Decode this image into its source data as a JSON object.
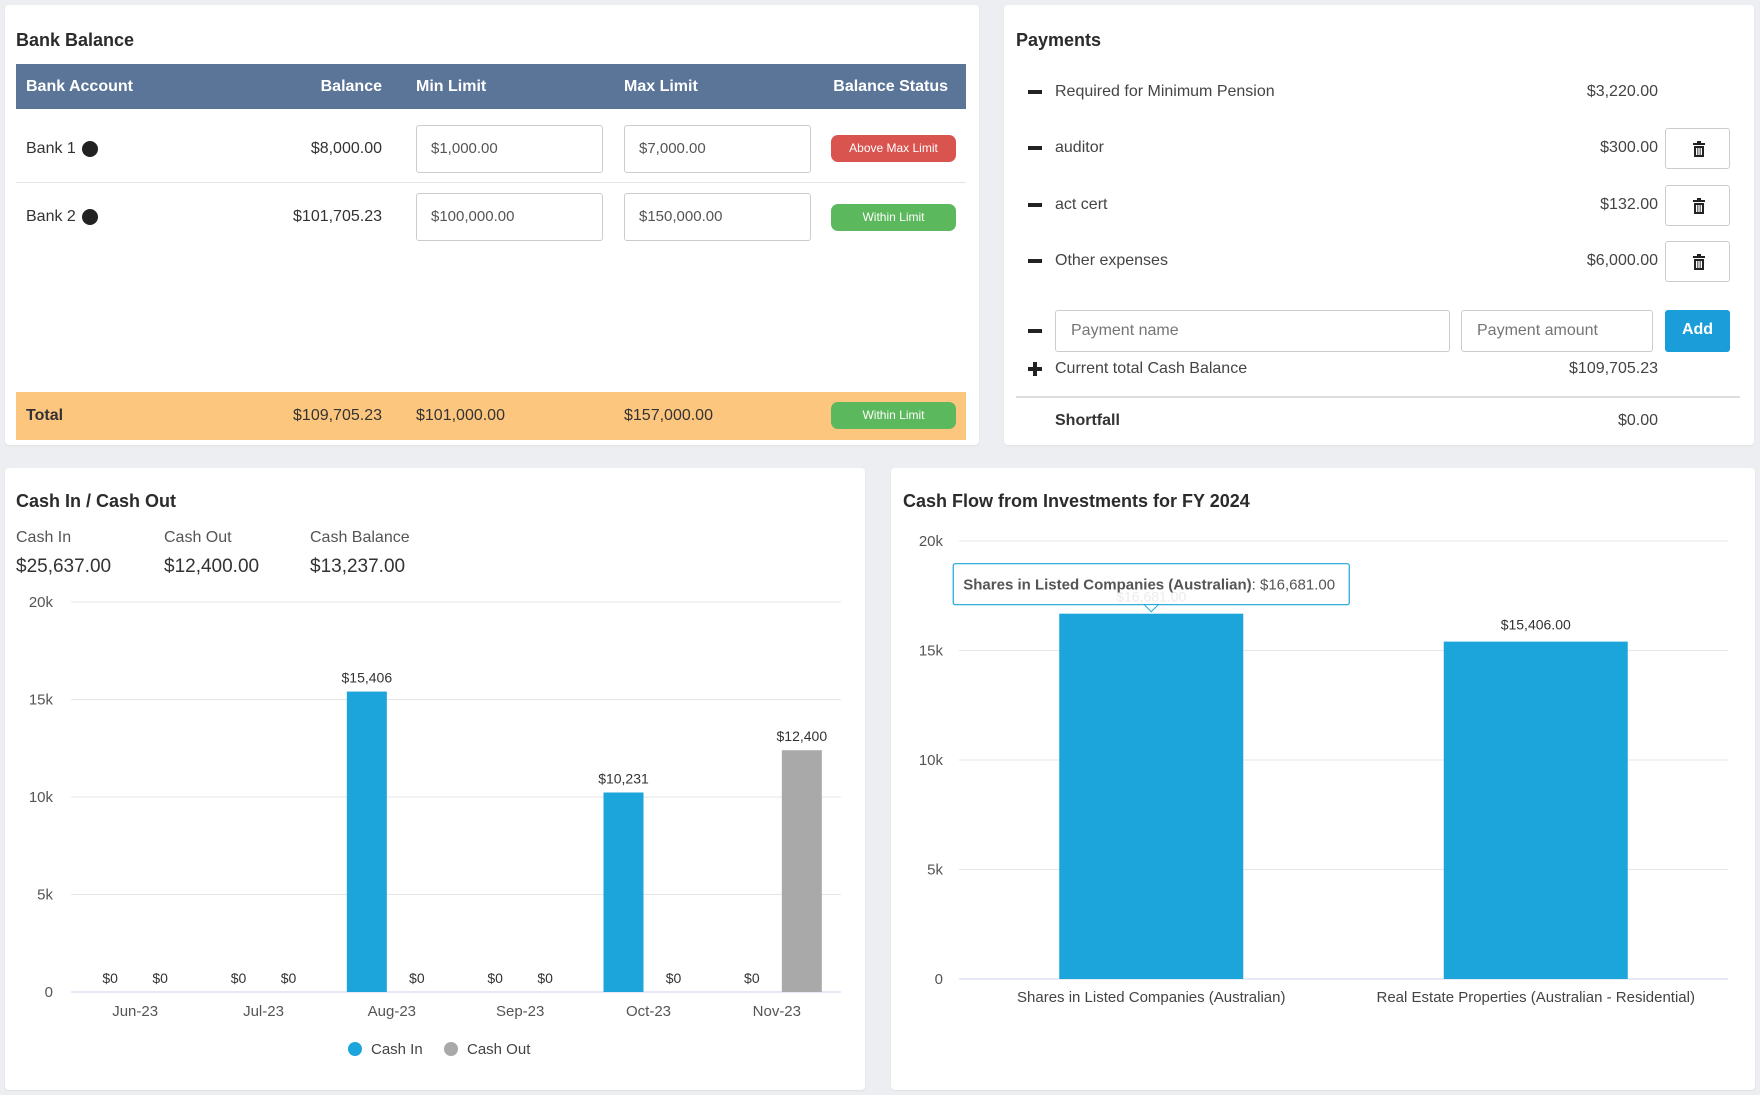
{
  "bank_balance": {
    "title": "Bank Balance",
    "headers": {
      "account": "Bank Account",
      "balance": "Balance",
      "min_limit": "Min Limit",
      "max_limit": "Max Limit",
      "status": "Balance Status"
    },
    "rows": [
      {
        "account": "Bank 1",
        "balance": "$8,000.00",
        "min_limit": "$1,000.00",
        "max_limit": "$7,000.00",
        "status": "Above Max Limit"
      },
      {
        "account": "Bank 2",
        "balance": "$101,705.23",
        "min_limit": "$100,000.00",
        "max_limit": "$150,000.00",
        "status": "Within Limit"
      }
    ],
    "total": {
      "label": "Total",
      "balance": "$109,705.23",
      "min_limit": "$101,000.00",
      "max_limit": "$157,000.00",
      "status": "Within Limit"
    },
    "colors": {
      "header": "#5b7599",
      "total_row": "#fdc67e",
      "above": "#d9534f",
      "within": "#5cb85c"
    },
    "help_icon": "?"
  },
  "payments": {
    "title": "Payments",
    "items": [
      {
        "label": "Required for Minimum Pension",
        "amount": "$3,220.00"
      },
      {
        "label": "auditor",
        "amount": "$300.00"
      },
      {
        "label": "act cert",
        "amount": "$132.00"
      },
      {
        "label": "Other expenses",
        "amount": "$6,000.00"
      }
    ],
    "name_placeholder": "Payment name",
    "amount_placeholder": "Payment amount",
    "add_label": "Add",
    "cash_balance_label": "Current total Cash Balance",
    "cash_balance_value": "$109,705.23",
    "shortfall_label": "Shortfall",
    "shortfall_value": "$0.00"
  },
  "cash_io": {
    "title": "Cash In / Cash Out",
    "stats": [
      {
        "label": "Cash In",
        "value": "$25,637.00"
      },
      {
        "label": "Cash Out",
        "value": "$12,400.00"
      },
      {
        "label": "Cash Balance",
        "value": "$13,237.00"
      }
    ]
  },
  "investments": {
    "title": "Cash Flow from Investments for FY 2024",
    "tooltip_label": "Shares in Listed Companies (Australian)",
    "tooltip_value": ": $16,681.00"
  },
  "chart_data": [
    {
      "type": "bar",
      "categories": [
        "Jun-23",
        "Jul-23",
        "Aug-23",
        "Sep-23",
        "Oct-23",
        "Nov-23"
      ],
      "series": [
        {
          "name": "Cash In",
          "values": [
            0,
            0,
            15406,
            0,
            10231,
            0
          ],
          "labels": [
            "$0",
            "$0",
            "$15,406",
            "$0",
            "$10,231",
            "$0"
          ],
          "color": "#1ba5da"
        },
        {
          "name": "Cash Out",
          "values": [
            0,
            0,
            0,
            0,
            0,
            12400
          ],
          "labels": [
            "$0",
            "$0",
            "$0",
            "$0",
            "$0",
            "$12,400"
          ],
          "color": "#a9a9a9"
        }
      ],
      "yticks": [
        "0",
        "5k",
        "10k",
        "15k",
        "20k"
      ],
      "ylim": [
        0,
        20000
      ],
      "grid": true,
      "legend": "bottom"
    },
    {
      "type": "bar",
      "categories": [
        "Shares in Listed Companies (Australian)",
        "Real Estate Properties (Australian - Residential)"
      ],
      "values": [
        16681,
        15406
      ],
      "labels": [
        "$16,681.00",
        "$15,406.00"
      ],
      "yticks": [
        "0",
        "5k",
        "10k",
        "15k",
        "20k"
      ],
      "ylim": [
        0,
        20000
      ],
      "color": "#1ba5da",
      "grid": true
    }
  ]
}
